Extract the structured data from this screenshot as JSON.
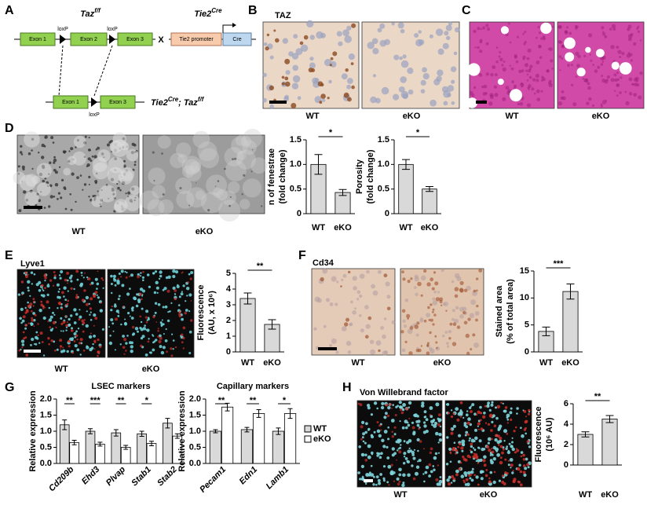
{
  "figure": {
    "A": {
      "letter": "A",
      "taz": "Taz",
      "taz_sup": "f/f",
      "tie2": "Tie2",
      "tie2_sup": "Cre",
      "exon1": "Exon 1",
      "exon2": "Exon 2",
      "exon3": "Exon 3",
      "loxp": "loxP",
      "cross": "X",
      "promoter": "Tie2 promoter",
      "cre": "Cre",
      "result_a": "Tie2",
      "result_a_sup": "Cre",
      "result_b": "; Taz",
      "result_b_sup": "f/f"
    },
    "B": {
      "letter": "B",
      "stain": "TAZ",
      "wt": "WT",
      "eko": "eKO"
    },
    "C": {
      "letter": "C",
      "wt": "WT",
      "eko": "eKO"
    },
    "D": {
      "letter": "D",
      "wt": "WT",
      "eko": "eKO"
    },
    "E": {
      "letter": "E",
      "stain": "Lyve1",
      "wt": "WT",
      "eko": "eKO"
    },
    "F": {
      "letter": "F",
      "stain": "Cd34",
      "wt": "WT",
      "eko": "eKO"
    },
    "G": {
      "letter": "G"
    },
    "H": {
      "letter": "H",
      "stain": "Von Willebrand factor",
      "wt": "WT",
      "eko": "eKO"
    }
  },
  "chart_data": [
    {
      "type": "bar",
      "ylabel": [
        "n of fenestrae",
        "(fold change)"
      ],
      "categories": [
        "WT",
        "eKO"
      ],
      "values": [
        1.0,
        0.43
      ],
      "errors": [
        0.2,
        0.06
      ],
      "color": "#d9d9d9",
      "ylim": [
        0,
        1.5
      ],
      "yticks": [
        0,
        0.5,
        {
          "value": 1,
          "label": "1.0"
        },
        1.5
      ],
      "significance": "*"
    },
    {
      "type": "bar",
      "ylabel": [
        "Porosity",
        "(fold change)"
      ],
      "categories": [
        "WT",
        "eKO"
      ],
      "values": [
        1.0,
        0.5
      ],
      "errors": [
        0.1,
        0.05
      ],
      "color": "#d9d9d9",
      "ylim": [
        0,
        1.5
      ],
      "yticks": [
        0,
        0.5,
        {
          "value": 1,
          "label": "1.0"
        },
        1.5
      ],
      "significance": "*"
    },
    {
      "type": "bar",
      "ylabel": [
        "Fluorescence",
        "(AU, x 10⁶)"
      ],
      "categories": [
        "WT",
        "eKO"
      ],
      "values": [
        3.4,
        1.75
      ],
      "errors": [
        0.35,
        0.3
      ],
      "color": "#d9d9d9",
      "ylim": [
        0,
        5
      ],
      "yticks": [
        0,
        1,
        2,
        3,
        4,
        5
      ],
      "significance": "**"
    },
    {
      "type": "bar",
      "ylabel": [
        "Stained area",
        "(% of total area)"
      ],
      "categories": [
        "WT",
        "eKO"
      ],
      "values": [
        3.8,
        11.2
      ],
      "errors": [
        0.8,
        1.4
      ],
      "color": "#d9d9d9",
      "ylim": [
        0,
        15
      ],
      "yticks": [
        0,
        5,
        10,
        15
      ],
      "significance": "***"
    },
    {
      "type": "grouped_bar",
      "title": "LSEC markers",
      "ylabel": [
        "Relative expression"
      ],
      "categories": [
        "Cd209b",
        "Ehd3",
        "Plvap",
        "Stab1",
        "Stab2"
      ],
      "series": [
        {
          "color": "#d9d9d9",
          "values": [
            1.2,
            1.0,
            0.95,
            0.92,
            1.25
          ],
          "errors": [
            0.15,
            0.08,
            0.1,
            0.08,
            0.15
          ]
        },
        {
          "color": "#ffffff",
          "values": [
            0.65,
            0.6,
            0.5,
            0.62,
            0.85
          ],
          "errors": [
            0.07,
            0.06,
            0.06,
            0.07,
            0.07
          ]
        }
      ],
      "ylim": [
        0,
        2
      ],
      "yticks": [
        {
          "value": 0,
          "label": "0.0"
        },
        0.5,
        {
          "value": 1,
          "label": "1.0"
        },
        1.5,
        {
          "value": 2,
          "label": "2.0"
        }
      ],
      "significance": [
        "**",
        "***",
        "**",
        "*",
        null
      ]
    },
    {
      "type": "grouped_bar",
      "title": "Capillary markers",
      "ylabel": [
        "Relative expression"
      ],
      "categories": [
        "Pecam1",
        "Edn1",
        "Lamb1"
      ],
      "series": [
        {
          "name": "WT",
          "color": "#d9d9d9",
          "values": [
            1.0,
            1.05,
            1.0
          ],
          "errors": [
            0.05,
            0.07,
            0.1
          ]
        },
        {
          "name": "eKO",
          "color": "#ffffff",
          "values": [
            1.75,
            1.55,
            1.55
          ],
          "errors": [
            0.12,
            0.12,
            0.15
          ]
        }
      ],
      "ylim": [
        0,
        2
      ],
      "yticks": [
        {
          "value": 0,
          "label": "0.0"
        },
        0.5,
        {
          "value": 1,
          "label": "1.0"
        },
        1.5,
        {
          "value": 2,
          "label": "2.0"
        }
      ],
      "significance": [
        "**",
        "**",
        "*"
      ]
    },
    {
      "type": "bar",
      "ylabel": [
        "Fluorescence",
        "(10⁶ AU)"
      ],
      "categories": [
        "WT",
        "eKO"
      ],
      "values": [
        3.0,
        4.5
      ],
      "errors": [
        0.25,
        0.35
      ],
      "color": "#d9d9d9",
      "ylim": [
        0,
        6
      ],
      "yticks": [
        0,
        2,
        4,
        6
      ],
      "significance": "**"
    }
  ]
}
